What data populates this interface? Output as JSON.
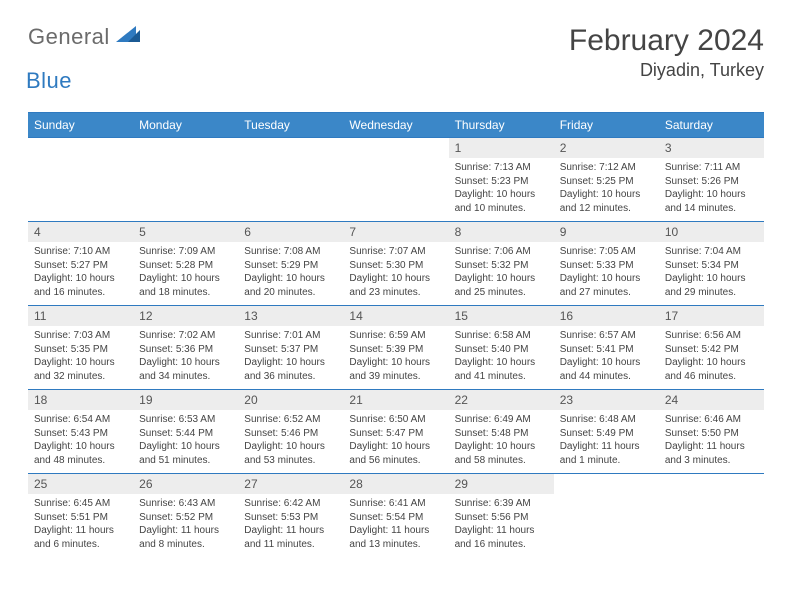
{
  "logo": {
    "general": "General",
    "blue": "Blue"
  },
  "title": "February 2024",
  "location": "Diyadin, Turkey",
  "colors": {
    "header_bg": "#3b87c8",
    "border": "#2f7ac0",
    "daynum_bg": "#ededed",
    "text": "#444444",
    "logo_gray": "#6b6b6b",
    "logo_blue": "#2f7ac0"
  },
  "weekdays": [
    "Sunday",
    "Monday",
    "Tuesday",
    "Wednesday",
    "Thursday",
    "Friday",
    "Saturday"
  ],
  "startOffset": 4,
  "days": [
    {
      "n": "1",
      "sunrise": "7:13 AM",
      "sunset": "5:23 PM",
      "daylight": "10 hours and 10 minutes."
    },
    {
      "n": "2",
      "sunrise": "7:12 AM",
      "sunset": "5:25 PM",
      "daylight": "10 hours and 12 minutes."
    },
    {
      "n": "3",
      "sunrise": "7:11 AM",
      "sunset": "5:26 PM",
      "daylight": "10 hours and 14 minutes."
    },
    {
      "n": "4",
      "sunrise": "7:10 AM",
      "sunset": "5:27 PM",
      "daylight": "10 hours and 16 minutes."
    },
    {
      "n": "5",
      "sunrise": "7:09 AM",
      "sunset": "5:28 PM",
      "daylight": "10 hours and 18 minutes."
    },
    {
      "n": "6",
      "sunrise": "7:08 AM",
      "sunset": "5:29 PM",
      "daylight": "10 hours and 20 minutes."
    },
    {
      "n": "7",
      "sunrise": "7:07 AM",
      "sunset": "5:30 PM",
      "daylight": "10 hours and 23 minutes."
    },
    {
      "n": "8",
      "sunrise": "7:06 AM",
      "sunset": "5:32 PM",
      "daylight": "10 hours and 25 minutes."
    },
    {
      "n": "9",
      "sunrise": "7:05 AM",
      "sunset": "5:33 PM",
      "daylight": "10 hours and 27 minutes."
    },
    {
      "n": "10",
      "sunrise": "7:04 AM",
      "sunset": "5:34 PM",
      "daylight": "10 hours and 29 minutes."
    },
    {
      "n": "11",
      "sunrise": "7:03 AM",
      "sunset": "5:35 PM",
      "daylight": "10 hours and 32 minutes."
    },
    {
      "n": "12",
      "sunrise": "7:02 AM",
      "sunset": "5:36 PM",
      "daylight": "10 hours and 34 minutes."
    },
    {
      "n": "13",
      "sunrise": "7:01 AM",
      "sunset": "5:37 PM",
      "daylight": "10 hours and 36 minutes."
    },
    {
      "n": "14",
      "sunrise": "6:59 AM",
      "sunset": "5:39 PM",
      "daylight": "10 hours and 39 minutes."
    },
    {
      "n": "15",
      "sunrise": "6:58 AM",
      "sunset": "5:40 PM",
      "daylight": "10 hours and 41 minutes."
    },
    {
      "n": "16",
      "sunrise": "6:57 AM",
      "sunset": "5:41 PM",
      "daylight": "10 hours and 44 minutes."
    },
    {
      "n": "17",
      "sunrise": "6:56 AM",
      "sunset": "5:42 PM",
      "daylight": "10 hours and 46 minutes."
    },
    {
      "n": "18",
      "sunrise": "6:54 AM",
      "sunset": "5:43 PM",
      "daylight": "10 hours and 48 minutes."
    },
    {
      "n": "19",
      "sunrise": "6:53 AM",
      "sunset": "5:44 PM",
      "daylight": "10 hours and 51 minutes."
    },
    {
      "n": "20",
      "sunrise": "6:52 AM",
      "sunset": "5:46 PM",
      "daylight": "10 hours and 53 minutes."
    },
    {
      "n": "21",
      "sunrise": "6:50 AM",
      "sunset": "5:47 PM",
      "daylight": "10 hours and 56 minutes."
    },
    {
      "n": "22",
      "sunrise": "6:49 AM",
      "sunset": "5:48 PM",
      "daylight": "10 hours and 58 minutes."
    },
    {
      "n": "23",
      "sunrise": "6:48 AM",
      "sunset": "5:49 PM",
      "daylight": "11 hours and 1 minute."
    },
    {
      "n": "24",
      "sunrise": "6:46 AM",
      "sunset": "5:50 PM",
      "daylight": "11 hours and 3 minutes."
    },
    {
      "n": "25",
      "sunrise": "6:45 AM",
      "sunset": "5:51 PM",
      "daylight": "11 hours and 6 minutes."
    },
    {
      "n": "26",
      "sunrise": "6:43 AM",
      "sunset": "5:52 PM",
      "daylight": "11 hours and 8 minutes."
    },
    {
      "n": "27",
      "sunrise": "6:42 AM",
      "sunset": "5:53 PM",
      "daylight": "11 hours and 11 minutes."
    },
    {
      "n": "28",
      "sunrise": "6:41 AM",
      "sunset": "5:54 PM",
      "daylight": "11 hours and 13 minutes."
    },
    {
      "n": "29",
      "sunrise": "6:39 AM",
      "sunset": "5:56 PM",
      "daylight": "11 hours and 16 minutes."
    }
  ],
  "labels": {
    "sunrise": "Sunrise:",
    "sunset": "Sunset:",
    "daylight": "Daylight:"
  }
}
